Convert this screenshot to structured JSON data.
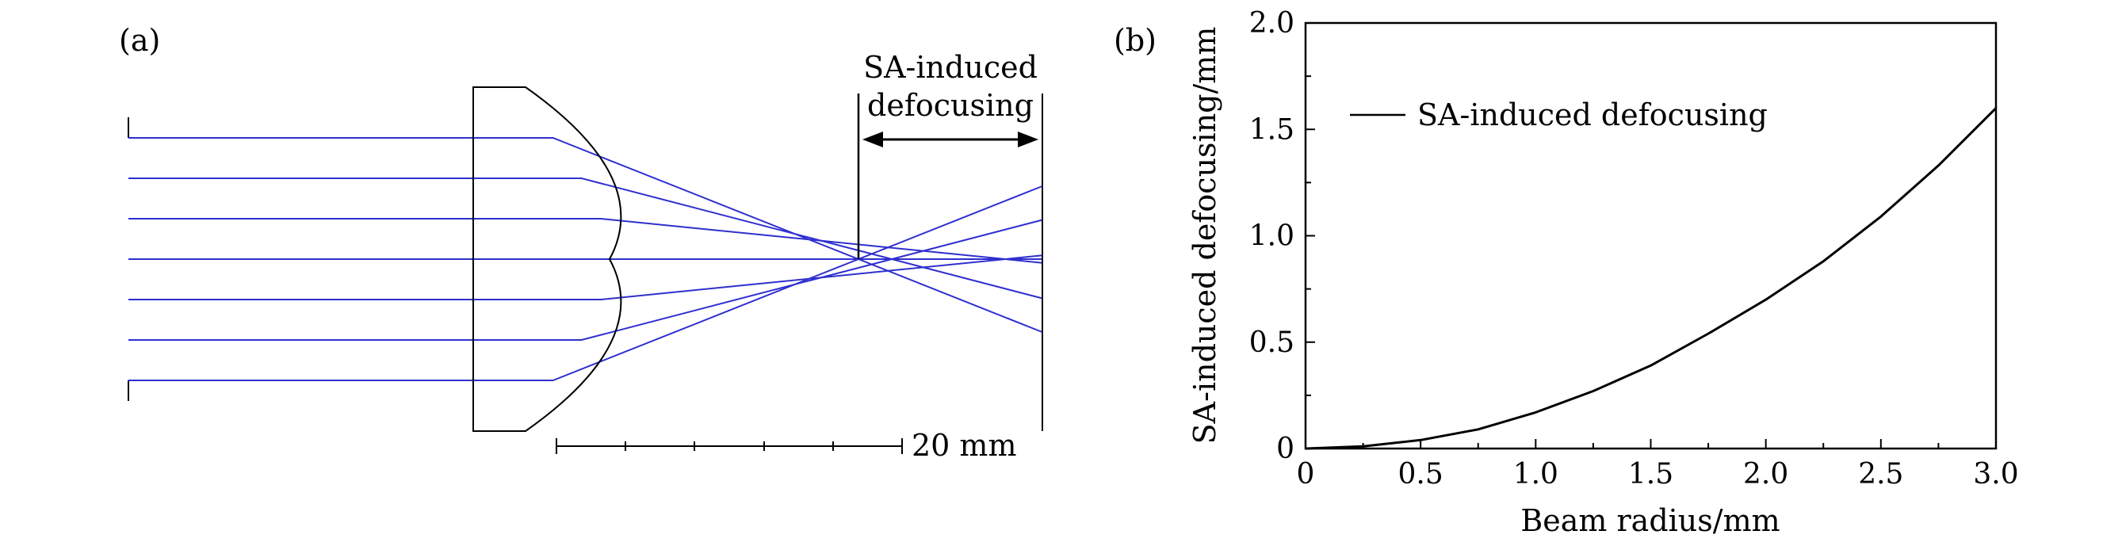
{
  "panels": {
    "a": {
      "label": "(a)",
      "annotation_line1": "SA-induced",
      "annotation_line2": "defocusing",
      "scale_label": "20 mm",
      "ray_color": "#2f2fd0",
      "ray_heights_mm": [
        3.0,
        2.0,
        1.0,
        0.0,
        -1.0,
        -2.0,
        -3.0
      ]
    },
    "b": {
      "label": "(b)"
    }
  },
  "chart_data": {
    "type": "line",
    "title": "",
    "xlabel": "Beam radius/mm",
    "ylabel": "SA-induced defocusing/mm",
    "xlim": [
      0,
      3.0
    ],
    "ylim": [
      0,
      2.0
    ],
    "xticks": [
      "0",
      "0.5",
      "1.0",
      "1.5",
      "2.0",
      "2.5",
      "3.0"
    ],
    "yticks": [
      "0",
      "0.5",
      "1.0",
      "1.5",
      "2.0"
    ],
    "grid": false,
    "legend": "top-left",
    "series": [
      {
        "name": "SA-induced defocusing",
        "color": "#000000",
        "x": [
          0,
          0.25,
          0.5,
          0.75,
          1.0,
          1.25,
          1.5,
          1.75,
          2.0,
          2.25,
          2.5,
          2.75,
          3.0
        ],
        "y": [
          0,
          0.01,
          0.04,
          0.09,
          0.17,
          0.27,
          0.39,
          0.54,
          0.7,
          0.88,
          1.09,
          1.33,
          1.6
        ]
      }
    ]
  }
}
